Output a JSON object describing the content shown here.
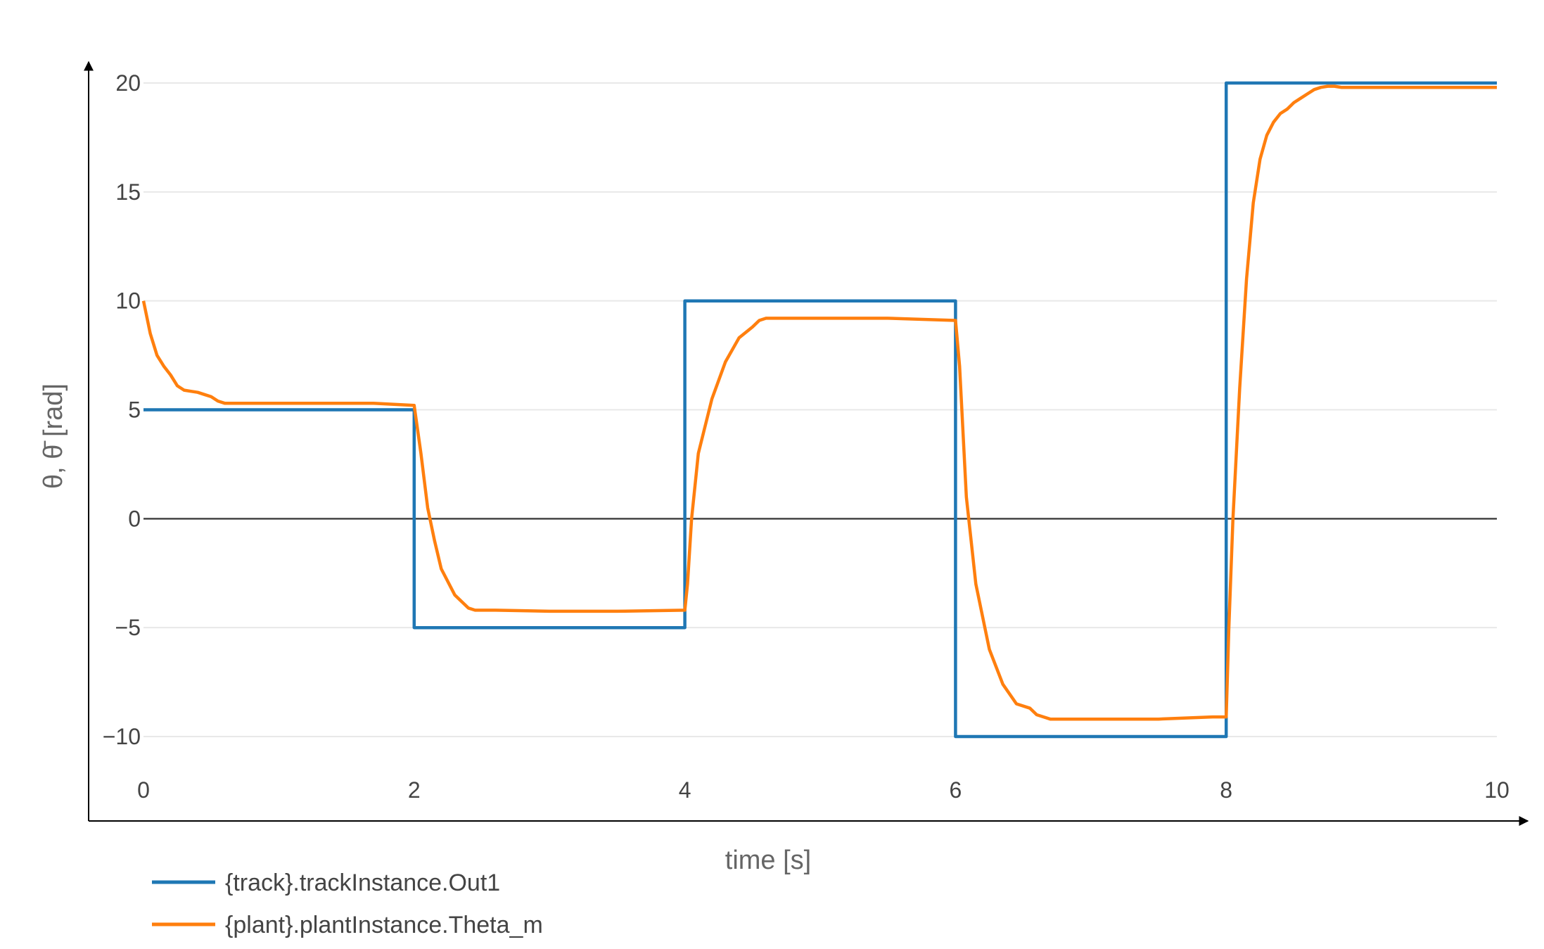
{
  "chart_data": {
    "type": "line",
    "title": "",
    "xlabel": "time [s]",
    "ylabel": "θ, θ̄ [rad]",
    "xlim": [
      0,
      10
    ],
    "ylim": [
      -12,
      21
    ],
    "x_ticks": [
      0,
      2,
      4,
      6,
      8,
      10
    ],
    "x_tick_labels": [
      "0",
      "2",
      "4",
      "6",
      "8",
      "10"
    ],
    "y_ticks": [
      -10,
      -5,
      0,
      5,
      10,
      15,
      20
    ],
    "y_tick_labels": [
      "−10",
      "−5",
      "0",
      "5",
      "10",
      "15",
      "20"
    ],
    "grid": true,
    "legend_position": "bottom-left",
    "series": [
      {
        "name": "{track}.trackInstance.Out1",
        "color": "#1f77b4",
        "x": [
          0,
          2,
          2,
          4,
          4,
          6,
          6,
          8,
          8,
          10
        ],
        "y": [
          5,
          5,
          -5,
          -5,
          10,
          10,
          -10,
          -10,
          20,
          20
        ]
      },
      {
        "name": "{plant}.plantInstance.Theta_m",
        "color": "#ff7f0e",
        "x": [
          0,
          0.05,
          0.1,
          0.15,
          0.2,
          0.25,
          0.3,
          0.35,
          0.4,
          0.45,
          0.5,
          0.55,
          0.6,
          0.8,
          1.0,
          1.5,
          1.7,
          2.0,
          2.05,
          2.1,
          2.15,
          2.2,
          2.3,
          2.4,
          2.45,
          2.5,
          2.6,
          3.0,
          3.5,
          4.0,
          4.02,
          4.05,
          4.1,
          4.2,
          4.3,
          4.4,
          4.5,
          4.55,
          4.6,
          4.8,
          5.0,
          5.5,
          6.0,
          6.03,
          6.08,
          6.15,
          6.25,
          6.35,
          6.45,
          6.55,
          6.6,
          6.65,
          6.7,
          6.8,
          7.0,
          7.5,
          7.9,
          8.0,
          8.02,
          8.05,
          8.1,
          8.15,
          8.2,
          8.25,
          8.3,
          8.35,
          8.4,
          8.45,
          8.5,
          8.55,
          8.6,
          8.65,
          8.7,
          8.75,
          8.8,
          8.85,
          9.0,
          9.5,
          10.0
        ],
        "y": [
          10,
          8.5,
          7.5,
          7.0,
          6.6,
          6.1,
          5.9,
          5.85,
          5.8,
          5.7,
          5.6,
          5.4,
          5.3,
          5.3,
          5.3,
          5.3,
          5.3,
          5.2,
          3.0,
          0.5,
          -1.0,
          -2.3,
          -3.5,
          -4.1,
          -4.2,
          -4.2,
          -4.2,
          -4.25,
          -4.25,
          -4.2,
          -3.0,
          0.0,
          3.0,
          5.5,
          7.2,
          8.3,
          8.8,
          9.1,
          9.2,
          9.2,
          9.2,
          9.2,
          9.1,
          7.0,
          1.0,
          -3.0,
          -6.0,
          -7.6,
          -8.5,
          -8.7,
          -9.0,
          -9.1,
          -9.2,
          -9.2,
          -9.2,
          -9.2,
          -9.1,
          -9.1,
          -5.0,
          0.0,
          6.0,
          11.0,
          14.5,
          16.5,
          17.6,
          18.2,
          18.6,
          18.8,
          19.1,
          19.3,
          19.5,
          19.7,
          19.8,
          19.85,
          19.85,
          19.8,
          19.8,
          19.8,
          19.8
        ]
      }
    ]
  }
}
